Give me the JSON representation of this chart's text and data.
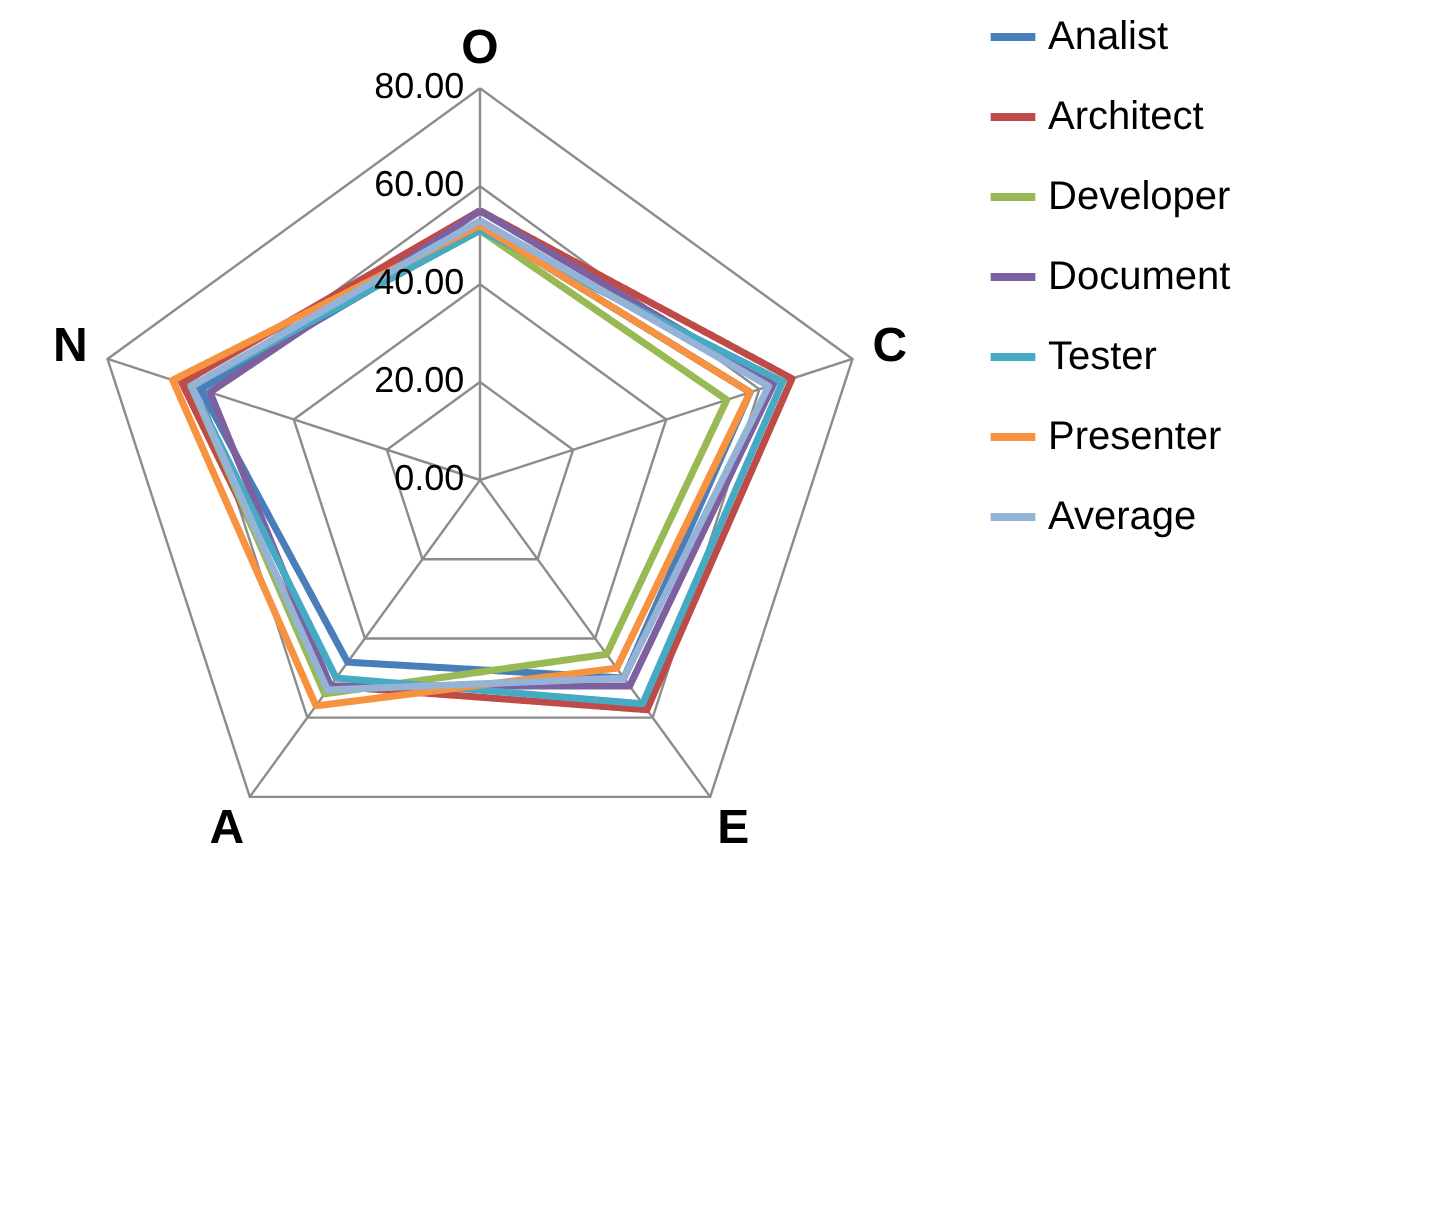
{
  "chart_data": {
    "type": "radar",
    "categories": [
      "O",
      "C",
      "E",
      "A",
      "N"
    ],
    "ylim": [
      0,
      80
    ],
    "yticks": [
      {
        "value": 0,
        "label": "0.00"
      },
      {
        "value": 20,
        "label": "20.00"
      },
      {
        "value": 40,
        "label": "40.00"
      },
      {
        "value": 60,
        "label": "60.00"
      },
      {
        "value": 80,
        "label": "80.00"
      }
    ],
    "grid": true,
    "legend": "right",
    "line_style": "solid",
    "marker": "none",
    "series": [
      {
        "name": "Analist",
        "color": "#4a7ebb",
        "values": [
          52,
          58,
          50,
          46,
          60
        ]
      },
      {
        "name": "Architect",
        "color": "#be4b48",
        "values": [
          55,
          67,
          58,
          52,
          64
        ]
      },
      {
        "name": "Developer",
        "color": "#98b954",
        "values": [
          51,
          53,
          44,
          54,
          62
        ]
      },
      {
        "name": "Document",
        "color": "#7d60a0",
        "values": [
          55,
          63,
          52,
          52,
          58
        ]
      },
      {
        "name": "Tester",
        "color": "#46aac5",
        "values": [
          51,
          65,
          56.5,
          50,
          62
        ]
      },
      {
        "name": "Presenter",
        "color": "#f69240",
        "values": [
          52,
          58,
          47.5,
          57,
          66
        ]
      },
      {
        "name": "Average",
        "color": "#95b3d7",
        "values": [
          53,
          62,
          50,
          53,
          62
        ]
      }
    ]
  }
}
